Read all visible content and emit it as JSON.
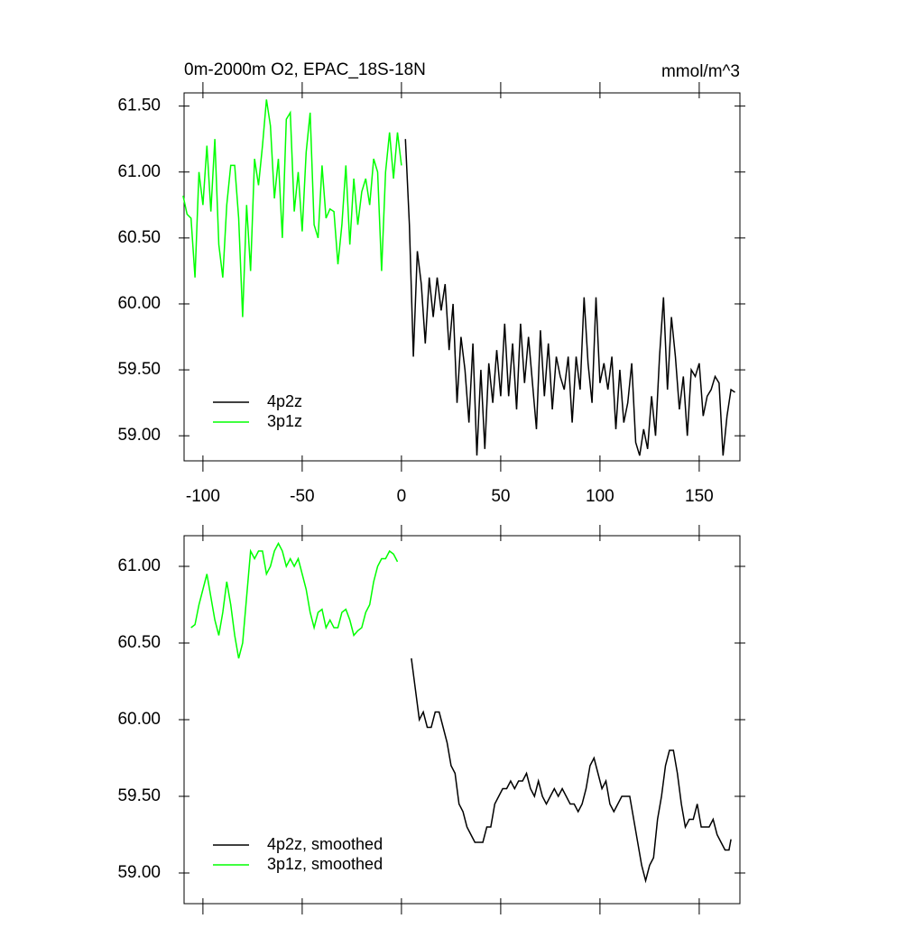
{
  "chart_data": [
    {
      "type": "line",
      "title": "0m-2000m O2, EPAC_18S-18N",
      "units": "mmol/m^3",
      "xlim": [
        -109.5,
        170.5
      ],
      "ylim": [
        58.81,
        61.6
      ],
      "xticks": [
        -100,
        -50,
        0,
        50,
        100,
        150
      ],
      "yticks": [
        {
          "value": 59,
          "label": "59.00"
        },
        {
          "value": 59.5,
          "label": "59.50"
        },
        {
          "value": 60,
          "label": "60.00"
        },
        {
          "value": 60.5,
          "label": "60.50"
        },
        {
          "value": 61,
          "label": "61.00"
        },
        {
          "value": 61.5,
          "label": "61.50"
        }
      ],
      "legend": "bottom-left",
      "series": [
        {
          "name": "4p2z",
          "color": "#000000",
          "x": [
            2,
            4,
            6,
            8,
            10,
            12,
            14,
            16,
            18,
            20,
            22,
            24,
            26,
            28,
            30,
            32,
            34,
            36,
            38,
            40,
            42,
            44,
            46,
            48,
            50,
            52,
            54,
            56,
            58,
            60,
            62,
            64,
            66,
            68,
            70,
            72,
            74,
            76,
            78,
            80,
            82,
            84,
            86,
            88,
            90,
            92,
            94,
            96,
            98,
            100,
            102,
            104,
            106,
            108,
            110,
            112,
            114,
            116,
            118,
            120,
            122,
            124,
            126,
            128,
            130,
            132,
            134,
            136,
            138,
            140,
            142,
            144,
            146,
            148,
            150,
            152,
            154,
            156,
            158,
            160,
            162,
            164,
            166,
            168
          ],
          "values": [
            61.25,
            60.6,
            59.6,
            60.4,
            60.15,
            59.7,
            60.2,
            59.9,
            60.2,
            59.95,
            60.15,
            59.65,
            60.0,
            59.25,
            59.75,
            59.5,
            59.1,
            59.7,
            58.85,
            59.5,
            58.9,
            59.55,
            59.25,
            59.65,
            59.3,
            59.85,
            59.3,
            59.7,
            59.2,
            59.85,
            59.4,
            59.75,
            59.4,
            59.05,
            59.8,
            59.3,
            59.7,
            59.2,
            59.6,
            59.45,
            59.35,
            59.6,
            59.1,
            59.6,
            59.35,
            60.05,
            59.55,
            59.25,
            60.05,
            59.4,
            59.55,
            59.35,
            59.6,
            59.05,
            59.5,
            59.1,
            59.25,
            59.55,
            58.95,
            58.85,
            59.05,
            58.9,
            59.3,
            59.0,
            59.6,
            60.05,
            59.35,
            59.9,
            59.6,
            59.2,
            59.45,
            59.0,
            59.5,
            59.45,
            59.55,
            59.15,
            59.3,
            59.35,
            59.45,
            59.4,
            58.85,
            59.15,
            59.35,
            59.33
          ]
        },
        {
          "name": "3p1z",
          "color": "#00ff00",
          "x": [
            -110,
            -108,
            -106,
            -104,
            -102,
            -100,
            -98,
            -96,
            -94,
            -92,
            -90,
            -88,
            -86,
            -84,
            -82,
            -80,
            -78,
            -76,
            -74,
            -72,
            -70,
            -68,
            -66,
            -64,
            -62,
            -60,
            -58,
            -56,
            -54,
            -52,
            -50,
            -48,
            -46,
            -44,
            -42,
            -40,
            -38,
            -36,
            -34,
            -32,
            -30,
            -28,
            -26,
            -24,
            -22,
            -20,
            -18,
            -16,
            -14,
            -12,
            -10,
            -8,
            -6,
            -4,
            -2,
            0
          ],
          "values": [
            60.82,
            60.68,
            60.65,
            60.2,
            61.0,
            60.75,
            61.2,
            60.7,
            61.25,
            60.45,
            60.2,
            60.75,
            61.05,
            61.05,
            60.65,
            59.9,
            60.75,
            60.25,
            61.1,
            60.9,
            61.2,
            61.55,
            61.35,
            60.8,
            61.1,
            60.5,
            61.4,
            61.45,
            60.7,
            61.0,
            60.55,
            61.15,
            61.45,
            60.6,
            60.5,
            61.05,
            60.65,
            60.72,
            60.7,
            60.3,
            60.6,
            61.05,
            60.45,
            60.95,
            60.6,
            60.85,
            60.95,
            60.75,
            61.1,
            61.0,
            60.25,
            61.0,
            61.3,
            60.95,
            61.3,
            61.05
          ]
        }
      ]
    },
    {
      "type": "line",
      "xlim": [
        -109.5,
        170.5
      ],
      "ylim": [
        58.8,
        61.2
      ],
      "yticks": [
        {
          "value": 59,
          "label": "59.00"
        },
        {
          "value": 59.5,
          "label": "59.50"
        },
        {
          "value": 60,
          "label": "60.00"
        },
        {
          "value": 60.5,
          "label": "60.50"
        },
        {
          "value": 61,
          "label": "61.00"
        }
      ],
      "legend": "bottom-left",
      "series": [
        {
          "name": "4p2z, smoothed",
          "color": "#000000",
          "x": [
            5,
            7,
            9,
            11,
            13,
            15,
            17,
            19,
            21,
            23,
            25,
            27,
            29,
            31,
            33,
            35,
            37,
            39,
            41,
            43,
            45,
            47,
            49,
            51,
            53,
            55,
            57,
            59,
            61,
            63,
            65,
            67,
            69,
            71,
            73,
            75,
            77,
            79,
            81,
            83,
            85,
            87,
            89,
            91,
            93,
            95,
            97,
            99,
            101,
            103,
            105,
            107,
            109,
            111,
            113,
            115,
            117,
            119,
            121,
            123,
            125,
            127,
            129,
            131,
            133,
            135,
            137,
            139,
            141,
            143,
            145,
            147,
            149,
            151,
            153,
            155,
            157,
            159,
            161,
            163,
            165,
            166
          ],
          "values": [
            60.4,
            60.2,
            60.0,
            60.05,
            59.95,
            59.95,
            60.05,
            60.05,
            59.95,
            59.85,
            59.7,
            59.65,
            59.45,
            59.4,
            59.3,
            59.25,
            59.2,
            59.2,
            59.2,
            59.3,
            59.3,
            59.45,
            59.5,
            59.55,
            59.55,
            59.6,
            59.55,
            59.6,
            59.6,
            59.65,
            59.55,
            59.5,
            59.6,
            59.5,
            59.45,
            59.5,
            59.55,
            59.5,
            59.55,
            59.5,
            59.45,
            59.45,
            59.4,
            59.45,
            59.55,
            59.7,
            59.75,
            59.65,
            59.55,
            59.6,
            59.45,
            59.4,
            59.45,
            59.5,
            59.5,
            59.5,
            59.35,
            59.2,
            59.05,
            58.95,
            59.05,
            59.1,
            59.35,
            59.5,
            59.7,
            59.8,
            59.8,
            59.65,
            59.45,
            59.3,
            59.35,
            59.35,
            59.45,
            59.3,
            59.3,
            59.3,
            59.35,
            59.25,
            59.2,
            59.15,
            59.15,
            59.22
          ]
        },
        {
          "name": "3p1z, smoothed",
          "color": "#00ff00",
          "x": [
            -106,
            -104,
            -102,
            -100,
            -98,
            -96,
            -94,
            -92,
            -90,
            -88,
            -86,
            -84,
            -82,
            -80,
            -78,
            -76,
            -74,
            -72,
            -70,
            -68,
            -66,
            -64,
            -62,
            -60,
            -58,
            -56,
            -54,
            -52,
            -50,
            -48,
            -46,
            -44,
            -42,
            -40,
            -38,
            -36,
            -34,
            -32,
            -30,
            -28,
            -26,
            -24,
            -22,
            -20,
            -18,
            -16,
            -14,
            -12,
            -10,
            -8,
            -6,
            -4,
            -2
          ],
          "values": [
            60.6,
            60.62,
            60.75,
            60.85,
            60.95,
            60.8,
            60.65,
            60.55,
            60.7,
            60.9,
            60.75,
            60.55,
            60.4,
            60.5,
            60.8,
            61.1,
            61.05,
            61.1,
            61.1,
            60.95,
            61.0,
            61.1,
            61.15,
            61.1,
            61.0,
            61.05,
            61.0,
            61.05,
            60.95,
            60.85,
            60.7,
            60.6,
            60.7,
            60.72,
            60.6,
            60.65,
            60.6,
            60.6,
            60.7,
            60.72,
            60.65,
            60.55,
            60.58,
            60.6,
            60.7,
            60.75,
            60.9,
            61.0,
            61.05,
            61.05,
            61.1,
            61.08,
            61.03
          ]
        }
      ]
    }
  ]
}
